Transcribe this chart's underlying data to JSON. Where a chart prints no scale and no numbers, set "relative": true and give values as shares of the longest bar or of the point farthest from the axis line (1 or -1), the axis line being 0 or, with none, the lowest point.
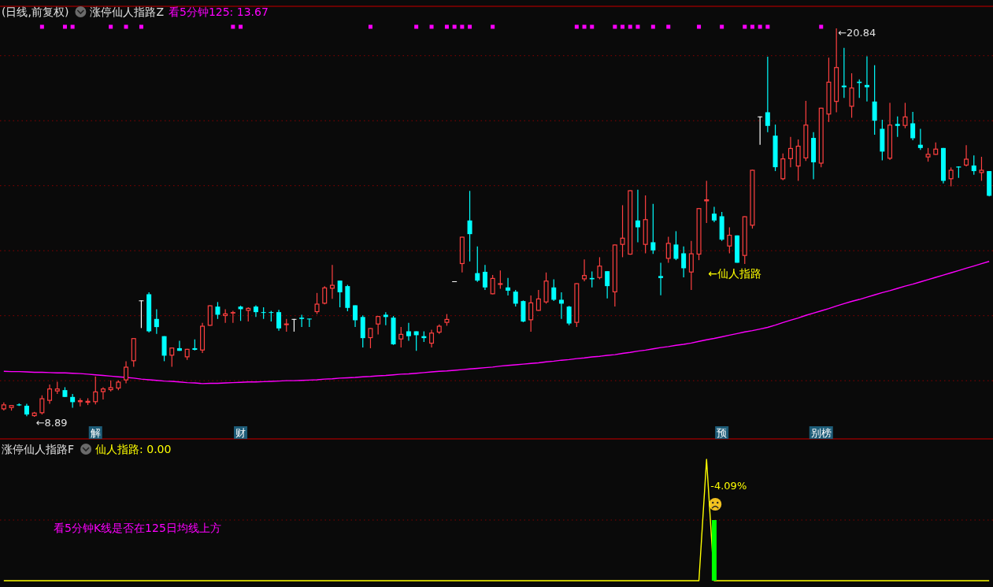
{
  "chart_data": [
    {
      "type": "candlestick",
      "title": "(日线,前复权)",
      "annotations": [
        "涨停仙人指路Z",
        "←8.89",
        "←20.84",
        "←仙人指路"
      ],
      "categories": [
        null,
        null,
        null,
        null,
        null,
        null,
        null,
        null,
        null,
        null,
        null,
        null,
        "解",
        null,
        null,
        null,
        null,
        null,
        null,
        null,
        null,
        null,
        null,
        null,
        null,
        null,
        null,
        null,
        null,
        null,
        null,
        "财",
        null,
        null,
        null,
        null,
        null,
        null,
        null,
        null,
        null,
        null,
        null,
        null,
        null,
        null,
        null,
        null,
        null,
        null,
        null,
        null,
        null,
        null,
        null,
        null,
        null,
        null,
        null,
        null,
        null,
        null,
        null,
        null,
        null,
        null,
        null,
        null,
        null,
        null,
        null,
        null,
        null,
        null,
        null,
        null,
        null,
        null,
        null,
        null,
        null,
        null,
        null,
        null,
        null,
        null,
        null,
        null,
        null,
        null,
        null,
        null,
        null,
        null,
        "预",
        null,
        null,
        null,
        null,
        null,
        null,
        null,
        null,
        null,
        null,
        null,
        null,
        "别榜",
        null,
        null,
        null,
        null,
        null,
        null,
        null,
        null,
        null,
        null,
        null,
        null,
        null,
        null,
        null,
        null,
        null,
        null,
        null,
        null,
        null,
        null
      ],
      "ohlc": [
        [
          9.12,
          9.33,
          9.08,
          9.27
        ],
        [
          9.16,
          9.25,
          9.08,
          9.25
        ],
        [
          9.27,
          9.3,
          9.22,
          9.24
        ],
        [
          9.23,
          9.29,
          8.91,
          8.96
        ],
        [
          8.91,
          9.04,
          8.89,
          9.02
        ],
        [
          9.0,
          9.55,
          8.96,
          9.46
        ],
        [
          9.38,
          9.88,
          9.29,
          9.76
        ],
        [
          9.67,
          9.97,
          9.59,
          9.76
        ],
        [
          9.71,
          9.8,
          9.5,
          9.5
        ],
        [
          9.5,
          9.59,
          9.17,
          9.34
        ],
        [
          9.34,
          9.46,
          9.21,
          9.4
        ],
        [
          9.32,
          9.46,
          9.25,
          9.38
        ],
        [
          9.34,
          10.13,
          9.27,
          9.67
        ],
        [
          9.65,
          9.8,
          9.42,
          9.76
        ],
        [
          9.71,
          10.01,
          9.67,
          9.8
        ],
        [
          9.76,
          10.01,
          9.71,
          9.97
        ],
        [
          10.01,
          10.6,
          9.92,
          10.43
        ],
        [
          10.6,
          11.31,
          10.43,
          11.31
        ],
        [
          12.47,
          12.47,
          11.62,
          12.47
        ],
        [
          12.66,
          12.72,
          11.48,
          11.52
        ],
        [
          11.9,
          12.2,
          11.44,
          11.65
        ],
        [
          11.37,
          11.37,
          10.6,
          10.77
        ],
        [
          10.77,
          11.02,
          10.43,
          11.02
        ],
        [
          11.0,
          11.23,
          10.92,
          10.92
        ],
        [
          10.72,
          10.98,
          10.64,
          10.98
        ],
        [
          11.0,
          11.27,
          10.93,
          10.95
        ],
        [
          10.93,
          11.78,
          10.85,
          11.69
        ],
        [
          11.69,
          12.32,
          11.69,
          12.32
        ],
        [
          12.28,
          12.42,
          11.9,
          12.03
        ],
        [
          11.99,
          12.2,
          11.78,
          12.07
        ],
        [
          12.07,
          12.15,
          11.78,
          12.11
        ],
        [
          12.28,
          12.31,
          11.84,
          12.2
        ],
        [
          12.15,
          12.26,
          11.82,
          12.24
        ],
        [
          12.28,
          12.32,
          11.96,
          12.11
        ],
        [
          12.11,
          12.26,
          11.9,
          12.1
        ],
        [
          12.11,
          12.15,
          11.82,
          12.1
        ],
        [
          12.11,
          12.18,
          11.54,
          11.61
        ],
        [
          11.71,
          11.9,
          11.51,
          11.76
        ],
        [
          11.9,
          11.9,
          11.51,
          11.9
        ],
        [
          11.94,
          12.03,
          11.65,
          11.9
        ],
        [
          11.91,
          11.91,
          11.65,
          11.9
        ],
        [
          12.11,
          12.7,
          12.05,
          12.37
        ],
        [
          12.37,
          12.91,
          12.35,
          12.87
        ],
        [
          12.83,
          13.56,
          12.52,
          12.95
        ],
        [
          13.08,
          13.08,
          12.26,
          12.72
        ],
        [
          12.91,
          12.95,
          12.14,
          12.24
        ],
        [
          12.32,
          12.32,
          11.65,
          11.86
        ],
        [
          11.96,
          12.01,
          11.02,
          11.31
        ],
        [
          11.31,
          11.62,
          11.0,
          11.62
        ],
        [
          11.73,
          11.99,
          11.42,
          11.99
        ],
        [
          12.03,
          12.11,
          11.71,
          11.96
        ],
        [
          11.94,
          11.99,
          11.1,
          11.12
        ],
        [
          11.27,
          11.65,
          11.02,
          11.44
        ],
        [
          11.52,
          11.78,
          11.23,
          11.37
        ],
        [
          11.52,
          11.52,
          10.92,
          11.4
        ],
        [
          11.37,
          11.52,
          11.19,
          11.31
        ],
        [
          11.14,
          11.57,
          11.02,
          11.48
        ],
        [
          11.48,
          11.73,
          11.44,
          11.69
        ],
        [
          11.78,
          12.05,
          11.69,
          11.9
        ],
        [
          13.06,
          13.06,
          13.06,
          13.06
        ],
        [
          13.59,
          14.43,
          13.33,
          14.43
        ],
        [
          14.93,
          15.84,
          13.67,
          14.51
        ],
        [
          13.31,
          14.13,
          13.04,
          13.08
        ],
        [
          13.35,
          13.56,
          12.79,
          12.87
        ],
        [
          12.66,
          13.25,
          12.66,
          13.16
        ],
        [
          12.95,
          13.39,
          12.83,
          13.0
        ],
        [
          12.87,
          13.16,
          12.62,
          12.77
        ],
        [
          12.74,
          12.79,
          12.28,
          12.37
        ],
        [
          12.45,
          12.47,
          11.8,
          11.82
        ],
        [
          11.86,
          12.62,
          11.51,
          12.41
        ],
        [
          12.15,
          12.79,
          12.15,
          12.53
        ],
        [
          12.41,
          13.33,
          12.37,
          13.08
        ],
        [
          12.87,
          13.12,
          12.45,
          12.49
        ],
        [
          12.49,
          12.72,
          11.9,
          12.37
        ],
        [
          12.28,
          12.3,
          11.71,
          11.76
        ],
        [
          11.78,
          13.0,
          11.65,
          13.0
        ],
        [
          13.12,
          13.73,
          13.06,
          13.25
        ],
        [
          13.16,
          13.36,
          12.87,
          13.12
        ],
        [
          13.16,
          13.8,
          13.12,
          13.54
        ],
        [
          13.37,
          13.37,
          12.53,
          12.91
        ],
        [
          12.72,
          14.19,
          12.28,
          14.19
        ],
        [
          14.18,
          15.4,
          13.8,
          14.4
        ],
        [
          13.88,
          15.86,
          13.88,
          15.86
        ],
        [
          14.93,
          15.88,
          14.26,
          14.72
        ],
        [
          14.18,
          15.7,
          13.92,
          14.97
        ],
        [
          14.26,
          15.44,
          13.9,
          14.01
        ],
        [
          13.22,
          13.63,
          12.63,
          13.16
        ],
        [
          13.75,
          14.43,
          13.63,
          14.24
        ],
        [
          14.19,
          14.6,
          13.71,
          13.75
        ],
        [
          13.92,
          14.13,
          13.18,
          13.46
        ],
        [
          13.33,
          14.3,
          12.79,
          13.92
        ],
        [
          13.88,
          15.31,
          13.71,
          15.31
        ],
        [
          15.52,
          16.15,
          14.85,
          15.58
        ],
        [
          15.14,
          15.35,
          14.88,
          14.93
        ],
        [
          15.06,
          15.19,
          14.3,
          14.34
        ],
        [
          14.13,
          14.72,
          13.92,
          14.49
        ],
        [
          14.47,
          14.47,
          13.63,
          13.63
        ],
        [
          13.84,
          15.06,
          13.59,
          15.06
        ],
        [
          14.77,
          16.49,
          14.68,
          16.49
        ],
        [
          18.13,
          18.13,
          17.26,
          18.13
        ],
        [
          18.26,
          19.97,
          17.65,
          17.84
        ],
        [
          17.54,
          17.88,
          16.45,
          16.57
        ],
        [
          16.2,
          16.99,
          16.17,
          16.84
        ],
        [
          16.82,
          17.5,
          16.57,
          17.16
        ],
        [
          16.59,
          17.42,
          16.15,
          17.23
        ],
        [
          16.84,
          18.61,
          16.76,
          17.88
        ],
        [
          17.47,
          17.65,
          16.2,
          16.72
        ],
        [
          16.68,
          18.4,
          16.57,
          18.4
        ],
        [
          18.19,
          19.94,
          17.96,
          19.2
        ],
        [
          18.58,
          20.84,
          18.26,
          19.65
        ],
        [
          19.08,
          20.24,
          18.7,
          19.03
        ],
        [
          18.43,
          19.46,
          18.09,
          19.02
        ],
        [
          19.2,
          19.27,
          18.7,
          19.16
        ],
        [
          19.1,
          19.98,
          18.59,
          19.03
        ],
        [
          18.59,
          19.71,
          17.57,
          18.0
        ],
        [
          17.75,
          18.03,
          16.78,
          17.05
        ],
        [
          16.83,
          18.55,
          16.79,
          17.88
        ],
        [
          17.9,
          18.13,
          17.5,
          17.84
        ],
        [
          17.84,
          18.55,
          17.77,
          18.13
        ],
        [
          17.92,
          18.27,
          17.4,
          17.46
        ],
        [
          17.26,
          17.75,
          17.1,
          17.16
        ],
        [
          16.87,
          17.16,
          16.74,
          16.98
        ],
        [
          16.95,
          17.33,
          16.95,
          17.14
        ],
        [
          17.16,
          17.16,
          16.07,
          16.15
        ],
        [
          16.2,
          16.56,
          15.98,
          16.49
        ],
        [
          16.59,
          16.59,
          16.24,
          16.56
        ],
        [
          16.62,
          17.25,
          16.59,
          16.83
        ],
        [
          16.62,
          16.93,
          16.34,
          16.45
        ],
        [
          16.39,
          16.89,
          16.15,
          16.49
        ],
        [
          16.45,
          16.45,
          15.67,
          15.69
        ]
      ],
      "colors": [
        "#ff4040",
        "#ff4040",
        "#00ffff",
        "#00ffff",
        "#ff4040",
        "#ff4040",
        "#ff4040",
        "#ff4040",
        "#00ffff",
        "#00ffff",
        "#ff4040",
        "#ff4040",
        "#ff4040",
        "#ff4040",
        "#ff4040",
        "#ff4040",
        "#ff4040",
        "#ff4040",
        "#ffffff",
        "#00ffff",
        "#00ffff",
        "#00ffff",
        "#ff4040",
        "#00ffff",
        "#ff4040",
        "#00ffff",
        "#ff4040",
        "#ff4040",
        "#00ffff",
        "#ff4040",
        "#ff4040",
        "#00ffff",
        "#ff4040",
        "#00ffff",
        "#00ffff",
        "#00ffff",
        "#00ffff",
        "#ff4040",
        "#ffffff",
        "#00ffff",
        "#00ffff",
        "#ff4040",
        "#ff4040",
        "#ff4040",
        "#00ffff",
        "#00ffff",
        "#00ffff",
        "#00ffff",
        "#ff4040",
        "#ff4040",
        "#00ffff",
        "#00ffff",
        "#ff4040",
        "#00ffff",
        "#00ffff",
        "#00ffff",
        "#ff4040",
        "#ff4040",
        "#ff4040",
        "#ffffff",
        "#ff4040",
        "#00ffff",
        "#00ffff",
        "#00ffff",
        "#ff4040",
        "#ff4040",
        "#00ffff",
        "#00ffff",
        "#00ffff",
        "#ff4040",
        "#ff4040",
        "#ff4040",
        "#00ffff",
        "#00ffff",
        "#00ffff",
        "#ff4040",
        "#ff4040",
        "#00ffff",
        "#ff4040",
        "#00ffff",
        "#ff4040",
        "#ff4040",
        "#ff4040",
        "#00ffff",
        "#ff4040",
        "#00ffff",
        "#00ffff",
        "#ff4040",
        "#00ffff",
        "#00ffff",
        "#ff4040",
        "#ff4040",
        "#ff4040",
        "#00ffff",
        "#00ffff",
        "#ff4040",
        "#00ffff",
        "#ff4040",
        "#ff4040",
        "#ffffff",
        "#00ffff",
        "#00ffff",
        "#ff4040",
        "#ff4040",
        "#ff4040",
        "#ff4040",
        "#00ffff",
        "#ff4040",
        "#ff4040",
        "#ff4040",
        "#00ffff",
        "#ff4040",
        "#00ffff",
        "#00ffff",
        "#00ffff",
        "#00ffff",
        "#ff4040",
        "#00ffff",
        "#ff4040",
        "#00ffff",
        "#00ffff",
        "#ff4040",
        "#ff4040",
        "#00ffff",
        "#ff4040",
        "#00ffff",
        "#ff4040",
        "#00ffff",
        "#ff4040",
        "#00ffff"
      ],
      "series": [
        {
          "type": "line",
          "name": "看5分钟125: 13.67",
          "color": "#ff00ff",
          "values": [
            10.29,
            10.28,
            10.28,
            10.27,
            10.26,
            10.26,
            10.25,
            10.24,
            10.24,
            10.23,
            10.22,
            10.2,
            10.18,
            10.16,
            10.14,
            10.12,
            10.1,
            10.08,
            10.05,
            10.03,
            10.01,
            9.99,
            9.98,
            9.96,
            9.94,
            9.93,
            9.91,
            9.92,
            9.92,
            9.93,
            9.94,
            9.95,
            9.96,
            9.96,
            9.97,
            9.98,
            9.99,
            10.0,
            10.0,
            10.01,
            10.02,
            10.03,
            10.05,
            10.06,
            10.08,
            10.09,
            10.1,
            10.12,
            10.13,
            10.15,
            10.16,
            10.18,
            10.2,
            10.21,
            10.23,
            10.25,
            10.27,
            10.29,
            10.3,
            10.32,
            10.34,
            10.36,
            10.38,
            10.4,
            10.42,
            10.45,
            10.47,
            10.49,
            10.51,
            10.53,
            10.55,
            10.58,
            10.6,
            10.63,
            10.65,
            10.68,
            10.7,
            10.73,
            10.75,
            10.78,
            10.8,
            10.84,
            10.87,
            10.91,
            10.94,
            10.98,
            11.02,
            11.05,
            11.09,
            11.12,
            11.16,
            11.21,
            11.26,
            11.3,
            11.35,
            11.4,
            11.45,
            11.5,
            11.54,
            11.59,
            11.64,
            11.71,
            11.79,
            11.86,
            11.93,
            12.01,
            12.08,
            12.15,
            12.22,
            12.3,
            12.37,
            12.44,
            12.5,
            12.57,
            12.64,
            12.71,
            12.77,
            12.84,
            12.91,
            12.97,
            13.04,
            13.11,
            13.18,
            13.25,
            13.32,
            13.39,
            13.46,
            13.53,
            13.6,
            13.67
          ]
        },
        {
          "type": "scatter",
          "color": "#ff00ff",
          "marker": "square",
          "values": [
            null,
            null,
            null,
            null,
            null,
            20.89,
            null,
            null,
            20.89,
            20.89,
            null,
            null,
            null,
            null,
            20.89,
            null,
            20.89,
            null,
            20.89,
            null,
            null,
            null,
            null,
            null,
            null,
            null,
            null,
            null,
            null,
            null,
            20.89,
            20.89,
            null,
            null,
            null,
            null,
            null,
            null,
            null,
            null,
            null,
            null,
            null,
            null,
            null,
            null,
            null,
            null,
            20.89,
            null,
            null,
            null,
            null,
            null,
            20.89,
            null,
            20.89,
            null,
            20.89,
            20.89,
            20.89,
            20.89,
            null,
            null,
            20.89,
            null,
            null,
            null,
            null,
            null,
            null,
            null,
            null,
            null,
            null,
            20.89,
            20.89,
            20.89,
            null,
            null,
            20.89,
            20.89,
            20.89,
            20.89,
            null,
            20.89,
            null,
            20.89,
            null,
            null,
            null,
            20.89,
            null,
            null,
            20.89,
            null,
            null,
            20.89,
            20.89,
            20.89,
            20.89,
            null,
            null,
            null,
            null,
            null,
            null,
            20.89,
            null,
            null,
            null,
            null,
            null,
            null,
            null,
            null,
            null,
            null,
            null,
            null,
            null,
            null,
            null,
            null,
            null,
            null,
            null,
            null,
            null,
            null
          ]
        }
      ],
      "ylim": [
        8.21,
        21.52
      ],
      "yticks": [
        {
          "value": 10,
          "label": null
        },
        {
          "value": 12,
          "label": null
        },
        {
          "value": 14,
          "label": null
        },
        {
          "value": 16,
          "label": null
        },
        {
          "value": 18,
          "label": null
        },
        {
          "value": 20,
          "label": null
        }
      ],
      "grid": "y"
    },
    {
      "type": "line",
      "title": "涨停仙人指路F",
      "relative": true,
      "annotations": [
        "看5分钟K线是否在125日均线上方",
        "-4.09%"
      ],
      "categories": [
        null,
        null,
        null,
        null,
        null,
        null,
        null,
        null,
        null,
        null,
        null,
        null,
        null,
        null,
        null,
        null,
        null,
        null,
        null,
        null,
        null,
        null,
        null,
        null,
        null,
        null,
        null,
        null,
        null,
        null,
        null,
        null,
        null,
        null,
        null,
        null,
        null,
        null,
        null,
        null,
        null,
        null,
        null,
        null,
        null,
        null,
        null,
        null,
        null,
        null,
        null,
        null,
        null,
        null,
        null,
        null,
        null,
        null,
        null,
        null,
        null,
        null,
        null,
        null,
        null,
        null,
        null,
        null,
        null,
        null,
        null,
        null,
        null,
        null,
        null,
        null,
        null,
        null,
        null,
        null,
        null,
        null,
        null,
        null,
        null,
        null,
        null,
        null,
        null,
        null,
        null,
        null,
        null,
        null,
        null,
        null,
        null,
        null,
        null,
        null,
        null,
        null,
        null,
        null,
        null,
        null,
        null,
        null,
        null,
        null,
        null,
        null,
        null,
        null,
        null,
        null,
        null,
        null,
        null,
        null,
        null,
        null,
        null,
        null,
        null,
        null,
        null,
        null,
        null,
        null
      ],
      "ref_lines": [
        {
          "axis": "y",
          "value": 0.5,
          "color": "#800000",
          "line_style": "dotted"
        }
      ],
      "series": [
        {
          "type": "line",
          "name": "仙人指路: 0.00",
          "color": "#ffff00",
          "values": [
            0,
            0,
            0,
            0,
            0,
            0,
            0,
            0,
            0,
            0,
            0,
            0,
            0,
            0,
            0,
            0,
            0,
            0,
            0,
            0,
            0,
            0,
            0,
            0,
            0,
            0,
            0,
            0,
            0,
            0,
            0,
            0,
            0,
            0,
            0,
            0,
            0,
            0,
            0,
            0,
            0,
            0,
            0,
            0,
            0,
            0,
            0,
            0,
            0,
            0,
            0,
            0,
            0,
            0,
            0,
            0,
            0,
            0,
            0,
            0,
            0,
            0,
            0,
            0,
            0,
            0,
            0,
            0,
            0,
            0,
            0,
            0,
            0,
            0,
            0,
            0,
            0,
            0,
            0,
            0,
            0,
            0,
            0,
            0,
            0,
            0,
            0,
            0,
            0,
            0,
            0,
            0,
            1,
            0,
            0,
            0,
            0,
            0,
            0,
            0,
            0,
            0,
            0,
            0,
            0,
            0,
            0,
            0,
            0,
            0,
            0,
            0,
            0,
            0,
            0,
            0,
            0,
            0,
            0,
            0,
            0,
            0,
            0,
            0,
            0,
            0,
            0,
            0,
            0,
            0
          ]
        },
        {
          "type": "bar",
          "color": "#00ff00",
          "values": [
            null,
            null,
            null,
            null,
            null,
            null,
            null,
            null,
            null,
            null,
            null,
            null,
            null,
            null,
            null,
            null,
            null,
            null,
            null,
            null,
            null,
            null,
            null,
            null,
            null,
            null,
            null,
            null,
            null,
            null,
            null,
            null,
            null,
            null,
            null,
            null,
            null,
            null,
            null,
            null,
            null,
            null,
            null,
            null,
            null,
            null,
            null,
            null,
            null,
            null,
            null,
            null,
            null,
            null,
            null,
            null,
            null,
            null,
            null,
            null,
            null,
            null,
            null,
            null,
            null,
            null,
            null,
            null,
            null,
            null,
            null,
            null,
            null,
            null,
            null,
            null,
            null,
            null,
            null,
            null,
            null,
            null,
            null,
            null,
            null,
            null,
            null,
            null,
            null,
            null,
            null,
            null,
            null,
            0.5,
            null,
            null,
            null,
            null,
            null,
            null,
            null,
            null,
            null,
            null,
            null,
            null,
            null,
            null,
            null,
            null,
            null,
            null,
            null,
            null,
            null,
            null,
            null,
            null,
            null,
            null,
            null,
            null,
            null,
            null,
            null,
            null,
            null,
            null,
            null,
            null
          ]
        }
      ]
    }
  ]
}
